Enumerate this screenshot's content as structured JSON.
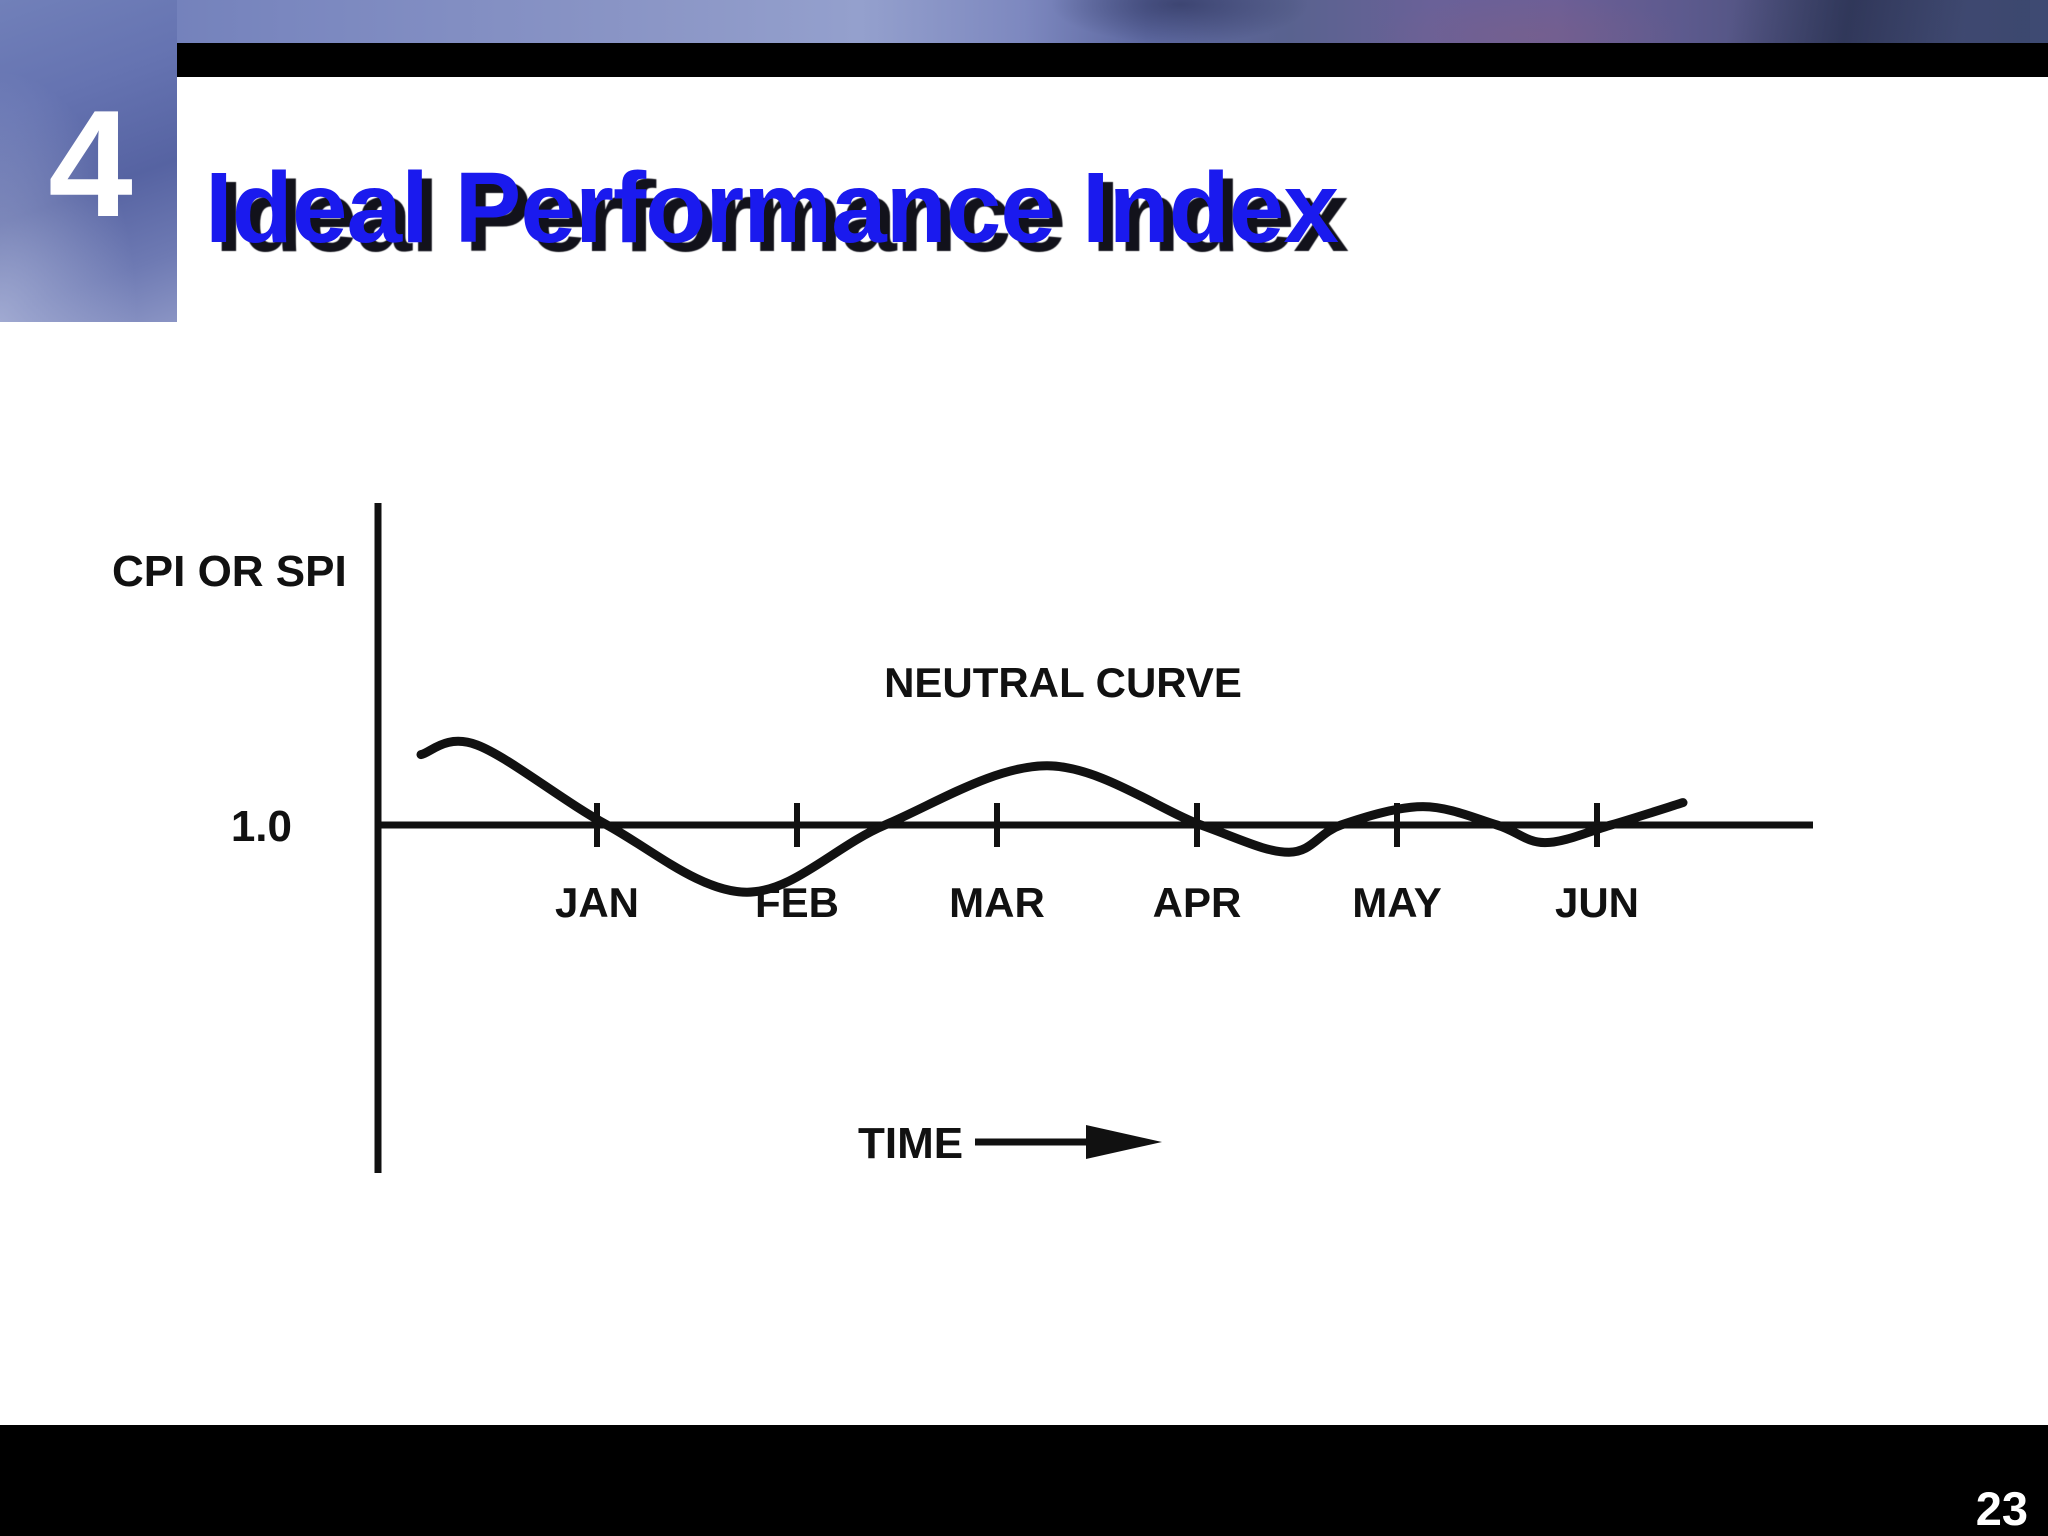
{
  "slide": {
    "number_badge": "4",
    "title": "Ideal Performance Index",
    "page_number": "23"
  },
  "chart_data": {
    "type": "line",
    "title": "Ideal Performance Index",
    "ylabel": "CPI OR SPI",
    "xlabel": "TIME",
    "annotation": "NEUTRAL CURVE",
    "reference_label": "1.0",
    "reference_value": 1.0,
    "categories": [
      "JAN",
      "FEB",
      "MAR",
      "APR",
      "MAY",
      "JUN"
    ],
    "ylim": [
      0.85,
      1.15
    ],
    "grid": false,
    "legend": false,
    "series": [
      {
        "name": "CPI/SPI neutral curve",
        "points": [
          {
            "x": 0.12,
            "y": 1.088
          },
          {
            "x": 0.4,
            "y": 1.1
          },
          {
            "x": 1.05,
            "y": 1.0
          },
          {
            "x": 1.75,
            "y": 0.916
          },
          {
            "x": 2.44,
            "y": 1.0
          },
          {
            "x": 3.25,
            "y": 1.074
          },
          {
            "x": 4.02,
            "y": 1.0
          },
          {
            "x": 4.46,
            "y": 0.966
          },
          {
            "x": 4.72,
            "y": 1.0
          },
          {
            "x": 5.13,
            "y": 1.023
          },
          {
            "x": 5.5,
            "y": 1.0
          },
          {
            "x": 5.74,
            "y": 0.978
          },
          {
            "x": 6.07,
            "y": 1.0
          },
          {
            "x": 6.43,
            "y": 1.028
          }
        ]
      }
    ],
    "colors": {
      "ink": "#111111",
      "title_blue": "#1a1aee"
    }
  }
}
